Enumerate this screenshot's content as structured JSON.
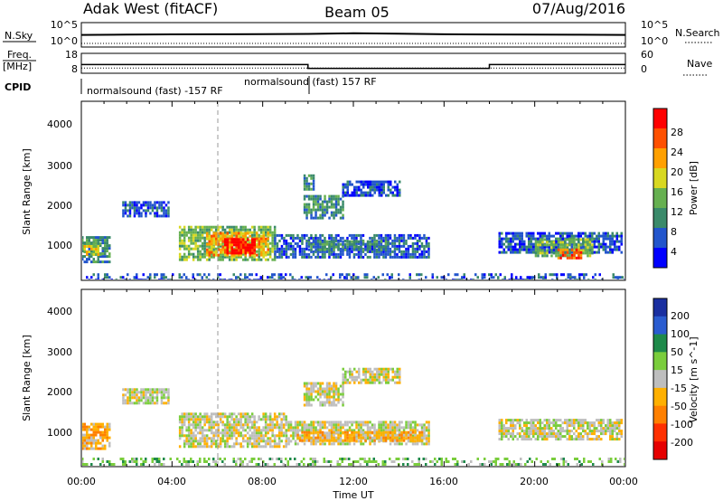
{
  "header": {
    "station": "Adak West (fitACF)",
    "beam": "Beam 05",
    "date": "07/Aug/2016"
  },
  "chart_data": [
    {
      "type": "line",
      "panel": "noise",
      "left_label": "N.Sky",
      "right_label": "N.Search",
      "left_ticks": [
        "10^5",
        "10^0"
      ],
      "right_ticks": [
        "10^5",
        "10^0"
      ],
      "y_scale": "log",
      "ylim": [
        1,
        100000
      ],
      "series": [
        {
          "name": "N.Sky",
          "x": [
            0,
            2,
            4,
            6,
            8,
            10,
            12,
            14,
            16,
            18,
            20,
            22,
            24
          ],
          "y": [
            300,
            350,
            400,
            420,
            450,
            500,
            700,
            550,
            420,
            380,
            350,
            330,
            300
          ]
        },
        {
          "name": "N.Search",
          "x": [
            0,
            4,
            8,
            12,
            16,
            20,
            24
          ],
          "y": [
            4,
            4,
            4,
            4,
            4,
            4,
            4
          ]
        }
      ]
    },
    {
      "type": "line",
      "panel": "frequency",
      "left_label_1": "Freq.",
      "left_label_2": "[MHz]",
      "right_label": "Nave",
      "left_ticks": [
        "18",
        "8"
      ],
      "right_ticks": [
        "60",
        "0"
      ],
      "cpid_label": "CPID",
      "cpid_text_1": "normalsound (fast) -157 RF",
      "cpid_text_2": "normalsound (fast) 157 RF",
      "series": [
        {
          "name": "Freq.",
          "x": [
            0,
            10,
            10,
            18,
            18,
            24
          ],
          "y": [
            12.3,
            12.3,
            10.2,
            10.2,
            12.3,
            12.3
          ]
        },
        {
          "name": "Nave",
          "x": [
            0,
            24
          ],
          "y": [
            14,
            14
          ]
        }
      ]
    },
    {
      "type": "heatmap",
      "panel": "power",
      "ylabel": "Slant Range [km]",
      "y_ticks": [
        "4000",
        "3000",
        "2000",
        "1000"
      ],
      "ylim": [
        200,
        4500
      ],
      "xlim": [
        0,
        24
      ],
      "colorbar_label": "Power [dB]",
      "colorbar_ticks": [
        "28",
        "24",
        "20",
        "16",
        "12",
        "8",
        "4"
      ],
      "colors": [
        "#0000ff",
        "#2255cc",
        "#3a8a6a",
        "#66b050",
        "#d8d820",
        "#ffa000",
        "#ff5000",
        "#ff0000"
      ],
      "regions": [
        {
          "t0": 0.0,
          "t1": 1.2,
          "r0": 600,
          "r1": 1250,
          "level": 2
        },
        {
          "t0": 0.1,
          "t1": 0.8,
          "r0": 800,
          "r1": 1100,
          "level": 4
        },
        {
          "t0": 1.8,
          "t1": 3.8,
          "r0": 1750,
          "r1": 2100,
          "level": 1
        },
        {
          "t0": 4.3,
          "t1": 8.5,
          "r0": 700,
          "r1": 1500,
          "level": 3
        },
        {
          "t0": 5.5,
          "t1": 8.2,
          "r0": 800,
          "r1": 1350,
          "level": 5
        },
        {
          "t0": 6.3,
          "t1": 7.6,
          "r0": 850,
          "r1": 1200,
          "level": 7
        },
        {
          "t0": 8.5,
          "t1": 15.3,
          "r0": 750,
          "r1": 1300,
          "level": 1
        },
        {
          "t0": 10.0,
          "t1": 13.5,
          "r0": 900,
          "r1": 1150,
          "level": 2
        },
        {
          "t0": 9.8,
          "t1": 11.5,
          "r0": 1700,
          "r1": 2250,
          "level": 2
        },
        {
          "t0": 11.5,
          "t1": 14.0,
          "r0": 2250,
          "r1": 2600,
          "level": 1
        },
        {
          "t0": 9.8,
          "t1": 10.2,
          "r0": 2400,
          "r1": 2750,
          "level": 2
        },
        {
          "t0": 18.4,
          "t1": 23.8,
          "r0": 850,
          "r1": 1350,
          "level": 1
        },
        {
          "t0": 20.0,
          "t1": 22.5,
          "r0": 800,
          "r1": 1200,
          "level": 3
        },
        {
          "t0": 21.0,
          "t1": 22.0,
          "r0": 750,
          "r1": 950,
          "level": 6
        },
        {
          "t0": 0.0,
          "t1": 24.0,
          "r0": 200,
          "r1": 350,
          "level": 1
        }
      ]
    },
    {
      "type": "heatmap",
      "panel": "velocity",
      "ylabel": "Slant Range [km]",
      "y_ticks": [
        "4000",
        "3000",
        "2000",
        "1000"
      ],
      "ylim": [
        200,
        4500
      ],
      "xlim": [
        0,
        24
      ],
      "xlabel": "Time UT",
      "x_ticks": [
        "00:00",
        "04:00",
        "08:00",
        "12:00",
        "16:00",
        "20:00",
        "00:00"
      ],
      "colorbar_label": "Velocity [m s^-1]",
      "colorbar_ticks": [
        "200",
        "100",
        "50",
        "15",
        "-15",
        "-50",
        "-100",
        "-200"
      ],
      "colors": [
        "#1a2fa0",
        "#2a5cd0",
        "#1e8a4a",
        "#7acd3c",
        "#bebebe",
        "#ffb000",
        "#ff8000",
        "#ff3000",
        "#e60000"
      ],
      "regions": [
        {
          "t0": 0.0,
          "t1": 1.2,
          "r0": 600,
          "r1": 1250,
          "level": 5
        },
        {
          "t0": 1.8,
          "t1": 3.8,
          "r0": 1750,
          "r1": 2100,
          "level": 4
        },
        {
          "t0": 4.3,
          "t1": 9.0,
          "r0": 700,
          "r1": 1500,
          "level": 4
        },
        {
          "t0": 9.0,
          "t1": 15.3,
          "r0": 750,
          "r1": 1300,
          "level": 4
        },
        {
          "t0": 9.5,
          "t1": 15.0,
          "r0": 800,
          "r1": 1050,
          "level": 5
        },
        {
          "t0": 9.8,
          "t1": 11.5,
          "r0": 1700,
          "r1": 2250,
          "level": 4
        },
        {
          "t0": 11.5,
          "t1": 14.0,
          "r0": 2250,
          "r1": 2600,
          "level": 4
        },
        {
          "t0": 18.4,
          "t1": 23.8,
          "r0": 850,
          "r1": 1350,
          "level": 4
        },
        {
          "t0": 0.0,
          "t1": 24.0,
          "r0": 200,
          "r1": 400,
          "level": 3
        }
      ]
    }
  ]
}
